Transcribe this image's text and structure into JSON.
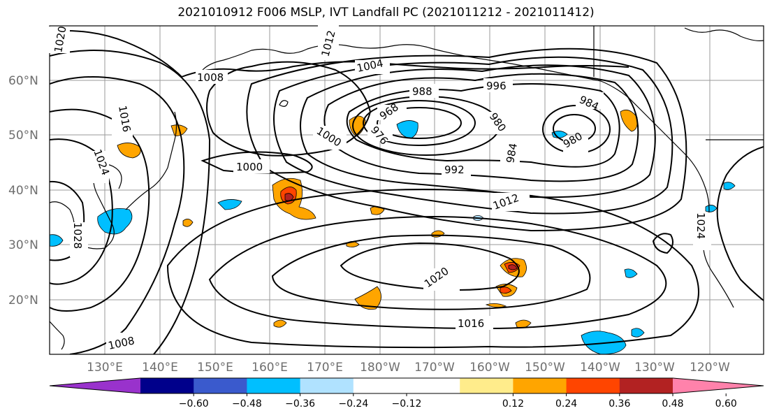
{
  "title": "2021010912 F006 MSLP, IVT Landfall PC (2021011212 - 2021011412)",
  "map": {
    "lat_labels": [
      "60°N",
      "50°N",
      "40°N",
      "30°N",
      "20°N"
    ],
    "lon_labels": [
      "130°E",
      "140°E",
      "150°E",
      "160°E",
      "170°E",
      "180°W",
      "170°W",
      "160°W",
      "150°W",
      "140°W",
      "130°W",
      "120°W"
    ],
    "isobar_labels": [
      {
        "text": "1020"
      },
      {
        "text": "1012"
      },
      {
        "text": "1008"
      },
      {
        "text": "1004"
      },
      {
        "text": "996"
      },
      {
        "text": "988"
      },
      {
        "text": "968"
      },
      {
        "text": "976"
      },
      {
        "text": "980"
      },
      {
        "text": "984"
      },
      {
        "text": "984"
      },
      {
        "text": "980"
      },
      {
        "text": "1016"
      },
      {
        "text": "1024"
      },
      {
        "text": "1000"
      },
      {
        "text": "1000"
      },
      {
        "text": "992"
      },
      {
        "text": "1012"
      },
      {
        "text": "1028"
      },
      {
        "text": "1024"
      },
      {
        "text": "1020"
      },
      {
        "text": "1016"
      },
      {
        "text": "1008"
      }
    ]
  },
  "colorbar": {
    "colors": [
      "#9932cc",
      "#00008b",
      "#3a5acd",
      "#00bfff",
      "#b0e2ff",
      "#ffffff",
      "#ffffff",
      "#ffec8b",
      "#ffa500",
      "#ff4500",
      "#b22222",
      "#ff82ab"
    ],
    "tick_labels": [
      "−0.60",
      "−0.48",
      "−0.36",
      "−0.24",
      "−0.12",
      "0.12",
      "0.24",
      "0.36",
      "0.48",
      "0.60"
    ]
  }
}
